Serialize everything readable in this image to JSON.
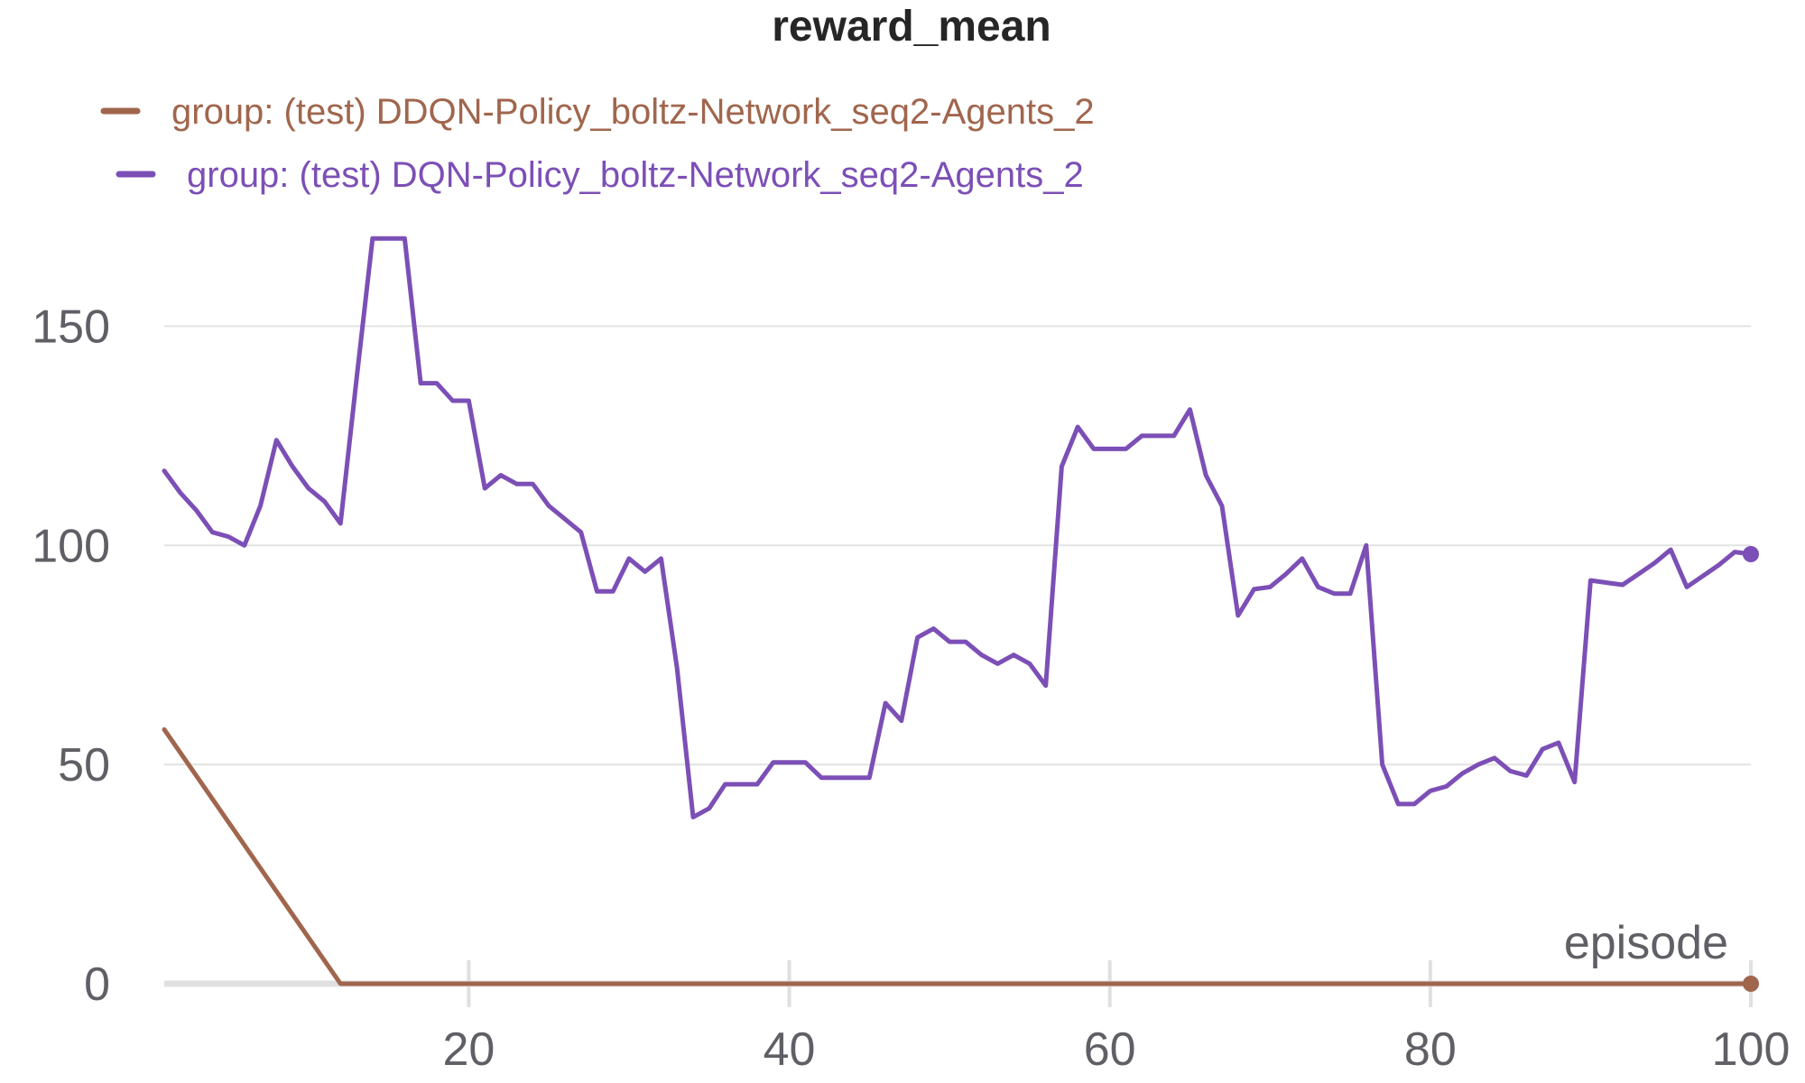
{
  "chart_data": {
    "type": "line",
    "title": "reward_mean",
    "xlabel": "episode",
    "ylabel": "",
    "xlim": [
      1,
      100
    ],
    "ylim": [
      0,
      175
    ],
    "x_ticks": [
      20,
      40,
      60,
      80,
      100
    ],
    "y_ticks": [
      0,
      50,
      100,
      150
    ],
    "grid": true,
    "legend_position": "top-left",
    "series": [
      {
        "name": "group: (test) DDQN-Policy_boltz-Network_seq2-Agents_2",
        "color": "#a0664d",
        "x": [
          1,
          12,
          100
        ],
        "y": [
          58,
          0,
          0
        ]
      },
      {
        "name": "group: (test) DQN-Policy_boltz-Network_seq2-Agents_2",
        "color": "#7c4fb6",
        "x": [
          1,
          2,
          3,
          4,
          5,
          6,
          7,
          8,
          9,
          10,
          11,
          12,
          13,
          14,
          15,
          16,
          17,
          18,
          19,
          20,
          21,
          22,
          23,
          24,
          25,
          26,
          27,
          28,
          29,
          30,
          31,
          32,
          33,
          34,
          35,
          36,
          37,
          38,
          39,
          40,
          41,
          42,
          43,
          44,
          45,
          46,
          47,
          48,
          49,
          50,
          51,
          52,
          53,
          54,
          55,
          56,
          57,
          58,
          59,
          60,
          61,
          62,
          63,
          64,
          65,
          66,
          67,
          68,
          69,
          70,
          71,
          72,
          73,
          74,
          75,
          76,
          77,
          78,
          79,
          80,
          81,
          82,
          83,
          84,
          85,
          86,
          87,
          88,
          89,
          90,
          91,
          92,
          93,
          94,
          95,
          96,
          97,
          98,
          99,
          100
        ],
        "y": [
          117,
          112,
          108,
          103,
          102,
          100,
          109,
          124,
          118,
          113,
          110,
          105,
          138,
          170,
          170,
          170,
          137,
          137,
          133,
          133,
          113,
          116,
          114,
          114,
          109,
          106,
          103,
          89.5,
          89.5,
          97,
          94,
          97,
          72,
          38,
          40,
          45.5,
          45.5,
          45.5,
          50.5,
          50.5,
          50.5,
          47,
          47,
          47,
          47,
          64,
          60,
          79,
          81,
          78,
          78,
          75,
          73,
          75,
          73,
          68,
          118,
          127,
          122,
          122,
          122,
          125,
          125,
          125,
          131,
          116,
          109,
          84,
          90,
          90.5,
          93.5,
          97,
          90.5,
          89,
          89,
          100,
          50,
          41,
          41,
          44,
          45,
          48,
          50,
          51.5,
          48.5,
          47.5,
          53.5,
          55,
          46,
          92,
          91.5,
          91,
          93.5,
          96,
          99,
          90.5,
          93,
          95.5,
          98.5,
          98
        ]
      }
    ]
  }
}
